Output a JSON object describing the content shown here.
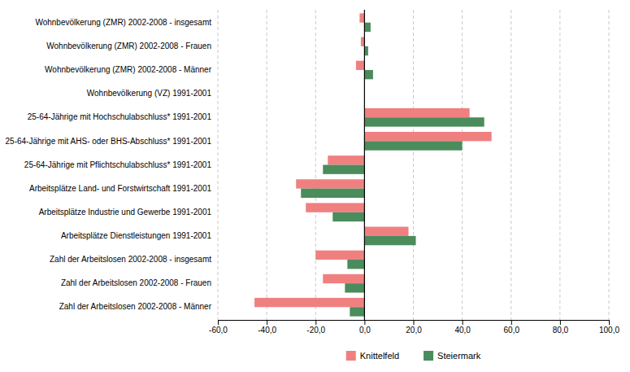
{
  "chart_data": {
    "type": "bar",
    "orientation": "horizontal",
    "categories": [
      "Wohnbevölkerung (ZMR) 2002-2008 - insgesamt",
      "Wohnbevölkerung (ZMR) 2002-2008 - Frauen",
      "Wohnbevölkerung (ZMR) 2002-2008 - Männer",
      "Wohnbevölkerung (VZ) 1991-2001",
      "25-64-Jährige mit Hochschulabschluss* 1991-2001",
      "25-64-Jährige mit AHS- oder BHS-Abschluss* 1991-2001",
      "25-64-Jährige mit Pflichtschulabschluss* 1991-2001",
      "Arbeitsplätze Land- und Forstwirtschaft 1991-2001",
      "Arbeitsplätze Industrie und Gewerbe 1991-2001",
      "Arbeitsplätze Dienstleistungen 1991-2001",
      "Zahl der Arbeitslosen 2002-2008 - insgesamt",
      "Zahl der Arbeitslosen 2002-2008 - Frauen",
      "Zahl der Arbeitslosen 2002-2008 - Männer"
    ],
    "series": [
      {
        "name": "Knittelfeld",
        "color": "#f08080",
        "values": [
          -2.0,
          -1.5,
          -3.5,
          0.0,
          43.0,
          52.0,
          -15.0,
          -28.0,
          -24.0,
          18.0,
          -20.0,
          -17.0,
          -45.0
        ]
      },
      {
        "name": "Steiermark",
        "color": "#4a8c5c",
        "values": [
          2.5,
          1.5,
          3.5,
          0.0,
          49.0,
          40.0,
          -17.0,
          -26.0,
          -13.0,
          21.0,
          -7.0,
          -8.0,
          -6.0
        ]
      }
    ],
    "xlim": [
      -60,
      100
    ],
    "xticks": [
      {
        "value": -60,
        "label": "-60,0"
      },
      {
        "value": -40,
        "label": "-40,0"
      },
      {
        "value": -20,
        "label": "-20,0"
      },
      {
        "value": 0,
        "label": "0,0"
      },
      {
        "value": 20,
        "label": "20,0"
      },
      {
        "value": 40,
        "label": "40,0"
      },
      {
        "value": 60,
        "label": "60,0"
      },
      {
        "value": 80,
        "label": "80,0"
      },
      {
        "value": 100,
        "label": "100,0"
      }
    ],
    "grid": true,
    "legend": "bottom"
  }
}
